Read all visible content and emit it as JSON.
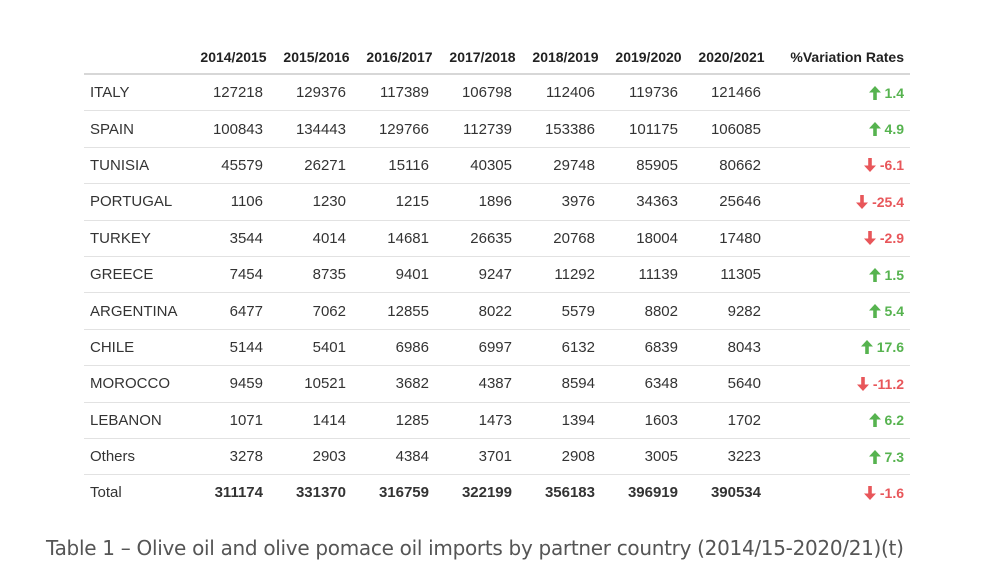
{
  "chart_data": {
    "type": "table",
    "columns": [
      "",
      "2014/2015",
      "2015/2016",
      "2016/2017",
      "2017/2018",
      "2018/2019",
      "2019/2020",
      "2020/2021",
      "%Variation Rates"
    ],
    "rows": [
      {
        "country": "ITALY",
        "values": [
          "127218",
          "129376",
          "117389",
          "106798",
          "112406",
          "119736",
          "121466"
        ],
        "variation": "1.4",
        "direction": "up"
      },
      {
        "country": "SPAIN",
        "values": [
          "100843",
          "134443",
          "129766",
          "112739",
          "153386",
          "101175",
          "106085"
        ],
        "variation": "4.9",
        "direction": "up"
      },
      {
        "country": "TUNISIA",
        "values": [
          "45579",
          "26271",
          "15116",
          "40305",
          "29748",
          "85905",
          "80662"
        ],
        "variation": "-6.1",
        "direction": "down"
      },
      {
        "country": "PORTUGAL",
        "values": [
          "1106",
          "1230",
          "1215",
          "1896",
          "3976",
          "34363",
          "25646"
        ],
        "variation": "-25.4",
        "direction": "down"
      },
      {
        "country": "TURKEY",
        "values": [
          "3544",
          "4014",
          "14681",
          "26635",
          "20768",
          "18004",
          "17480"
        ],
        "variation": "-2.9",
        "direction": "down"
      },
      {
        "country": "GREECE",
        "values": [
          "7454",
          "8735",
          "9401",
          "9247",
          "11292",
          "11139",
          "11305"
        ],
        "variation": "1.5",
        "direction": "up"
      },
      {
        "country": "ARGENTINA",
        "values": [
          "6477",
          "7062",
          "12855",
          "8022",
          "5579",
          "8802",
          "9282"
        ],
        "variation": "5.4",
        "direction": "up"
      },
      {
        "country": "CHILE",
        "values": [
          "5144",
          "5401",
          "6986",
          "6997",
          "6132",
          "6839",
          "8043"
        ],
        "variation": "17.6",
        "direction": "up"
      },
      {
        "country": "MOROCCO",
        "values": [
          "9459",
          "10521",
          "3682",
          "4387",
          "8594",
          "6348",
          "5640"
        ],
        "variation": "-11.2",
        "direction": "down"
      },
      {
        "country": "LEBANON",
        "values": [
          "1071",
          "1414",
          "1285",
          "1473",
          "1394",
          "1603",
          "1702"
        ],
        "variation": "6.2",
        "direction": "up"
      },
      {
        "country": "Others",
        "values": [
          "3278",
          "2903",
          "4384",
          "3701",
          "2908",
          "3005",
          "3223"
        ],
        "variation": "7.3",
        "direction": "up"
      },
      {
        "country": "Total",
        "values": [
          "311174",
          "331370",
          "316759",
          "322199",
          "356183",
          "396919",
          "390534"
        ],
        "variation": "-1.6",
        "direction": "down"
      }
    ],
    "colors": {
      "up": "#56b34f",
      "down": "#e8565a"
    }
  },
  "caption": "Table 1 – Olive oil and olive pomace oil imports by partner country (2014/15-2020/21)(t)"
}
